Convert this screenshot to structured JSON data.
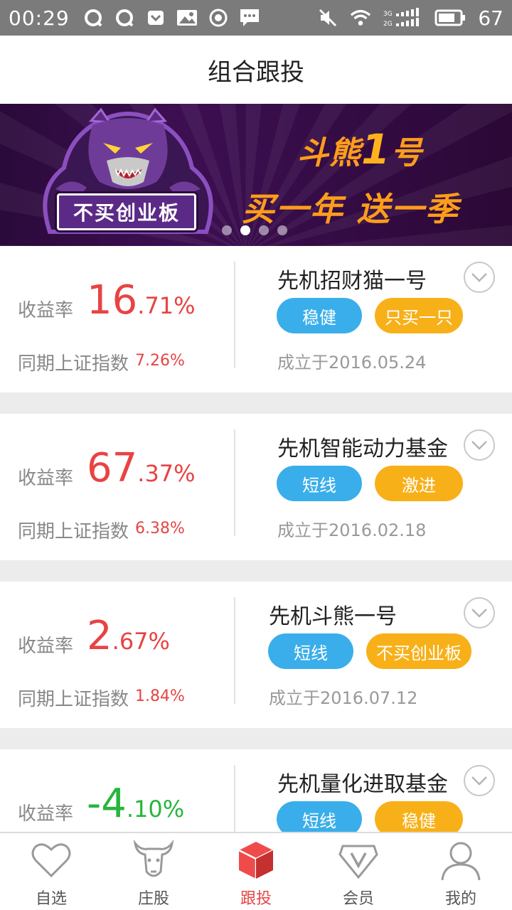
{
  "status_bar": {
    "time": "00:29",
    "battery": "67",
    "network": "3G 2G"
  },
  "header": {
    "title": "组合跟投"
  },
  "banner": {
    "badge": "不买创业板",
    "line1_prefix": "斗熊",
    "line1_number": "1",
    "line1_suffix": "号",
    "line2": "买一年 送一季",
    "active_dot": 1
  },
  "funds": [
    {
      "rate_label": "收益率",
      "rate_int": "16",
      "rate_dec": ".71%",
      "bench_label": "同期上证指数",
      "bench_value": "7.26%",
      "name": "先机招财猫一号",
      "tags": [
        "稳健",
        "只买一只"
      ],
      "since": "成立于2016.05.24"
    },
    {
      "rate_label": "收益率",
      "rate_int": "67",
      "rate_dec": ".37%",
      "bench_label": "同期上证指数",
      "bench_value": "6.38%",
      "name": "先机智能动力基金",
      "tags": [
        "短线",
        "激进"
      ],
      "since": "成立于2016.02.18"
    },
    {
      "rate_label": "收益率",
      "rate_int": "2",
      "rate_dec": ".67%",
      "bench_label": "同期上证指数",
      "bench_value": "1.84%",
      "name": "先机斗熊一号",
      "tags": [
        "短线",
        "不买创业板"
      ],
      "since": "成立于2016.07.12"
    },
    {
      "rate_label": "收益率",
      "rate_int": "-4",
      "rate_dec": ".10%",
      "bench_label": "同期上证指数",
      "bench_value": "",
      "name": "先机量化进取基金",
      "tags": [
        "短线",
        "稳健"
      ],
      "since": ""
    }
  ],
  "tabs": [
    {
      "label": "自选",
      "icon": "heart-icon"
    },
    {
      "label": "庄股",
      "icon": "bull-icon"
    },
    {
      "label": "跟投",
      "icon": "cube-icon",
      "active": true
    },
    {
      "label": "会员",
      "icon": "diamond-icon"
    },
    {
      "label": "我的",
      "icon": "user-icon"
    }
  ],
  "colors": {
    "positive": "#e84343",
    "negative": "#27b53c",
    "tag_blue": "#3aaeea",
    "tag_orange": "#f8b019",
    "active_tab": "#e84343"
  }
}
